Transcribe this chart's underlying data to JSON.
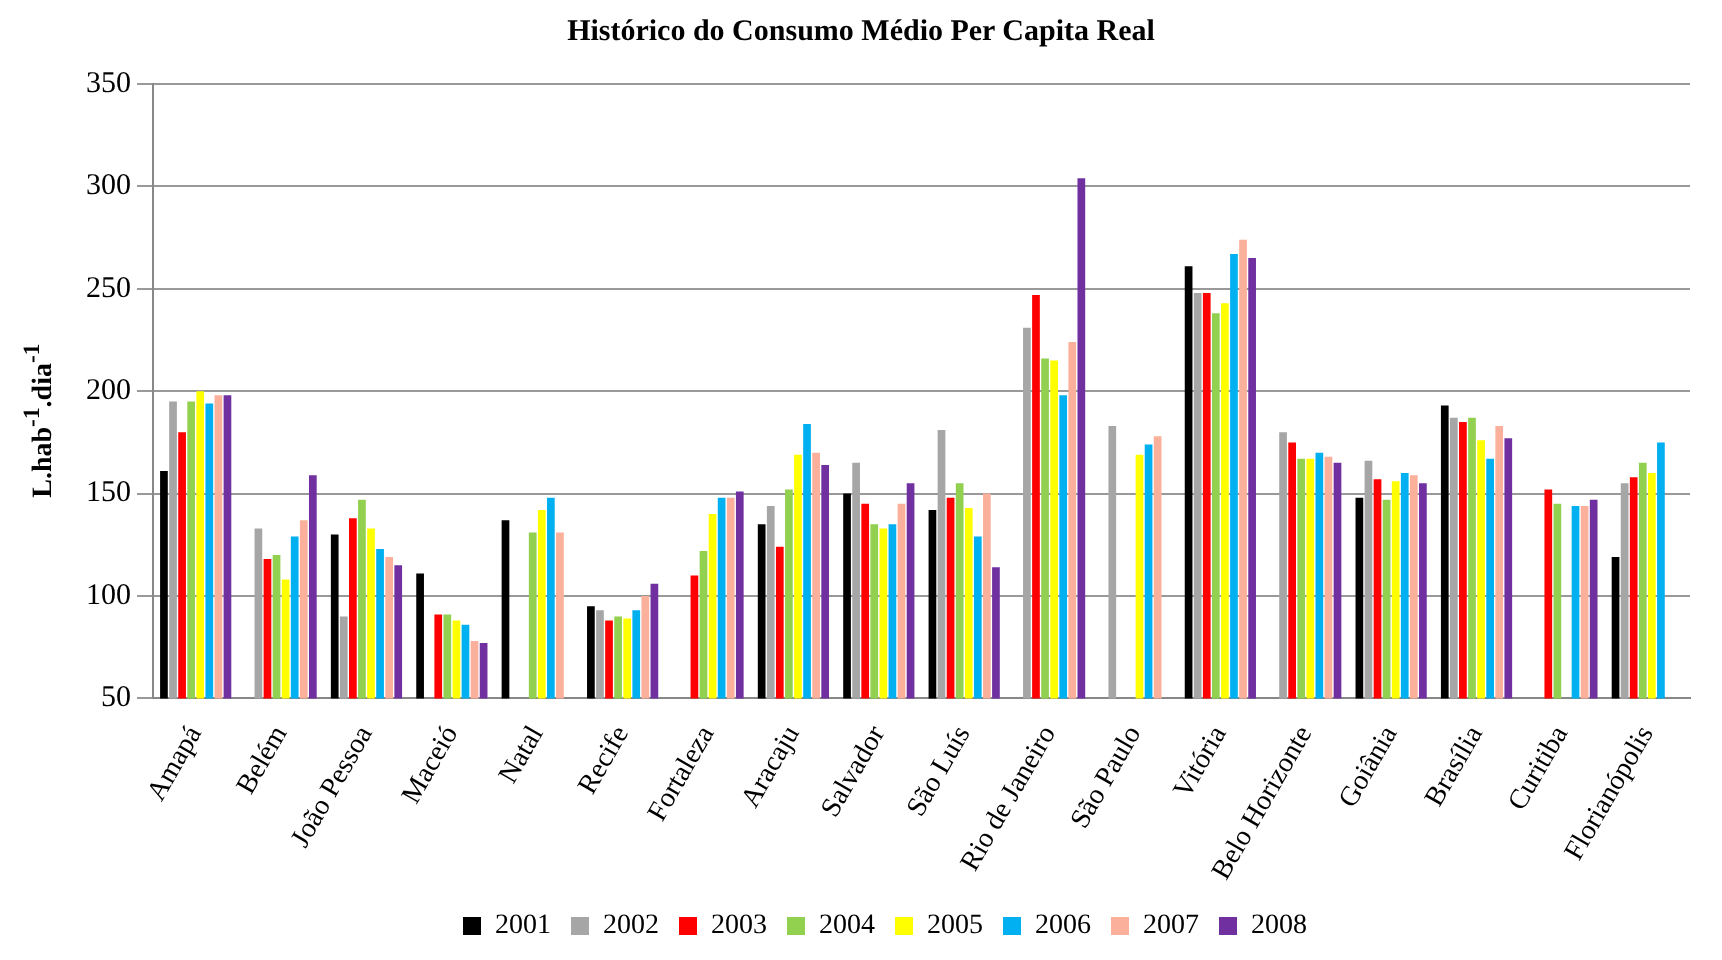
{
  "chart_data": {
    "type": "bar",
    "title": "Histórico do Consumo Médio Per Capita Real",
    "ylabel": "L.hab$^{-1}$.dia$^{-1}$",
    "categories": [
      "Amapá",
      "Belém",
      "João Pessoa",
      "Maceió",
      "Natal",
      "Recife",
      "Fortaleza",
      "Aracaju",
      "Salvador",
      "São Luís",
      "Rio de Janeiro",
      "São Paulo",
      "Vitória",
      "Belo Horizonte",
      "Goiânia",
      "Brasília",
      "Curitiba",
      "Florianópolis"
    ],
    "ylim": [
      50,
      350
    ],
    "yticks": [
      50,
      100,
      150,
      200,
      250,
      300,
      350
    ],
    "grid": "y",
    "legend": "bottom",
    "series": [
      {
        "name": "2001",
        "color": "#000000",
        "values": [
          161,
          null,
          130,
          111,
          137,
          95,
          null,
          135,
          150,
          142,
          null,
          null,
          261,
          null,
          148,
          193,
          null,
          119
        ]
      },
      {
        "name": "2002",
        "color": "#a6a6a6",
        "values": [
          195,
          133,
          90,
          null,
          null,
          93,
          null,
          144,
          165,
          181,
          231,
          183,
          248,
          180,
          166,
          187,
          null,
          155
        ]
      },
      {
        "name": "2003",
        "color": "#ff0000",
        "values": [
          180,
          118,
          138,
          91,
          null,
          88,
          110,
          124,
          145,
          148,
          247,
          null,
          248,
          175,
          157,
          185,
          152,
          158
        ]
      },
      {
        "name": "2004",
        "color": "#92d050",
        "values": [
          195,
          120,
          147,
          91,
          131,
          90,
          122,
          152,
          135,
          155,
          216,
          null,
          238,
          167,
          147,
          187,
          145,
          165
        ]
      },
      {
        "name": "2005",
        "color": "#ffff00",
        "values": [
          200,
          108,
          133,
          88,
          142,
          89,
          140,
          169,
          133,
          143,
          215,
          169,
          243,
          167,
          156,
          176,
          null,
          160
        ]
      },
      {
        "name": "2006",
        "color": "#00b0f0",
        "values": [
          194,
          129,
          123,
          86,
          148,
          93,
          148,
          184,
          135,
          129,
          198,
          174,
          267,
          170,
          160,
          167,
          144,
          175
        ]
      },
      {
        "name": "2007",
        "color": "#fab09a",
        "values": [
          198,
          137,
          119,
          78,
          131,
          100,
          148,
          170,
          145,
          150,
          224,
          178,
          274,
          168,
          159,
          183,
          144,
          null
        ]
      },
      {
        "name": "2008",
        "color": "#7030a0",
        "values": [
          198,
          159,
          115,
          77,
          null,
          106,
          151,
          164,
          155,
          114,
          304,
          null,
          265,
          165,
          155,
          177,
          147,
          null
        ]
      }
    ]
  }
}
